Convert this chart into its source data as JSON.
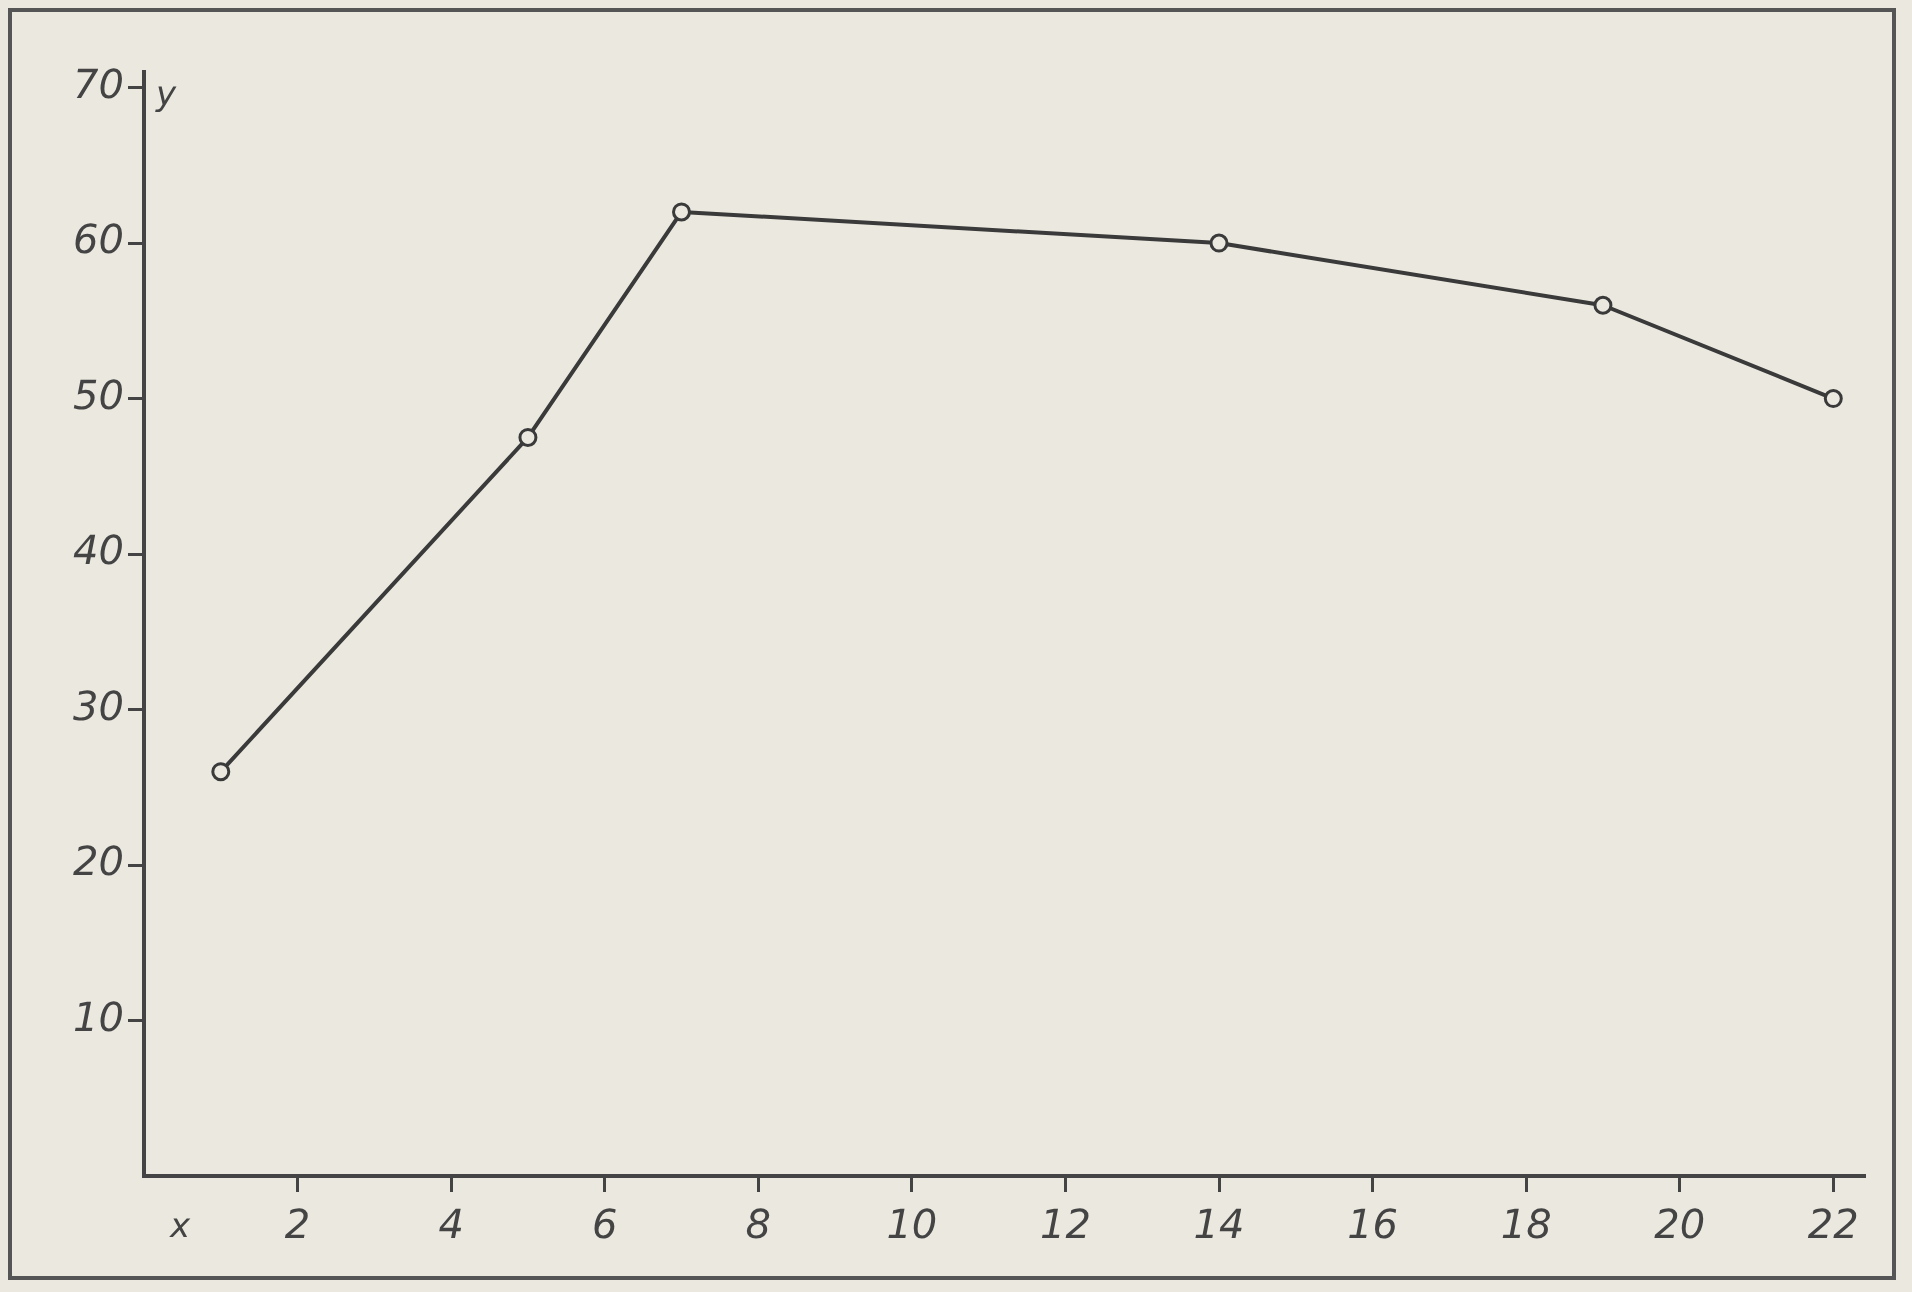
{
  "chart_data": {
    "type": "line",
    "xlabel": "x",
    "ylabel": "y",
    "x": [
      1,
      5,
      7,
      14,
      19,
      22
    ],
    "series": [
      {
        "color": "#3a3a3a",
        "values": [
          26,
          47.5,
          62,
          60,
          56,
          50
        ]
      }
    ],
    "xlim": [
      0,
      22.4
    ],
    "xticks": [
      2,
      4,
      6,
      8,
      10,
      12,
      14,
      16,
      18,
      20,
      22
    ],
    "ylim": [
      0,
      71
    ],
    "yticks": [
      10,
      20,
      30,
      40,
      50,
      60,
      70
    ],
    "grid": false,
    "legend": false,
    "marker": "circle",
    "line_style": "solid"
  }
}
